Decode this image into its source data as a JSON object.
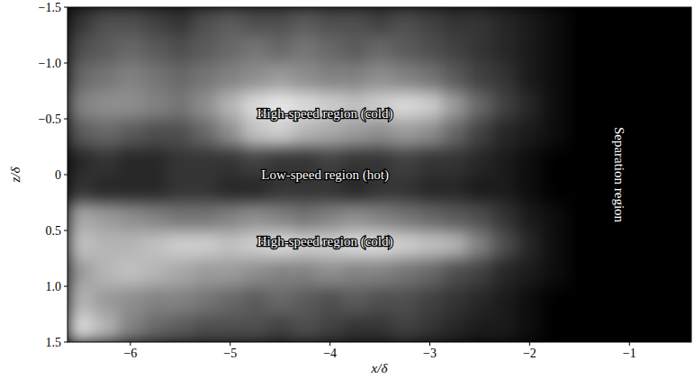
{
  "chart_data": {
    "type": "heatmap",
    "x_label": "x/δ",
    "y_label": "z/δ",
    "xlim": [
      -6.63,
      -0.38
    ],
    "ylim": [
      -1.5,
      1.5
    ],
    "xticks": [
      {
        "value": -6,
        "label": "−6"
      },
      {
        "value": -5,
        "label": "−5"
      },
      {
        "value": -4,
        "label": "−4"
      },
      {
        "value": -3,
        "label": "−3"
      },
      {
        "value": -2,
        "label": "−2"
      },
      {
        "value": -1,
        "label": "−1"
      }
    ],
    "yticks": [
      {
        "value": -1.5,
        "label": "−1.5"
      },
      {
        "value": -1.0,
        "label": "−1.0"
      },
      {
        "value": -0.5,
        "label": "−0.5"
      },
      0,
      0.5,
      {
        "value": 1.0,
        "label": "1.0"
      },
      1.5
    ],
    "color": "#ffffff",
    "cells": [
      [
        0.2,
        0.3,
        0.3,
        0.25,
        0.2,
        0.3,
        0.35,
        0.3,
        0.3,
        0.35,
        0.3,
        0.3,
        0.25,
        0.3,
        0.25,
        0.2,
        0.2,
        0.15,
        0.1,
        0.05,
        0,
        0,
        0,
        0,
        0
      ],
      [
        0.3,
        0.35,
        0.4,
        0.35,
        0.3,
        0.35,
        0.4,
        0.45,
        0.4,
        0.45,
        0.4,
        0.35,
        0.4,
        0.35,
        0.3,
        0.25,
        0.2,
        0.15,
        0.1,
        0.05,
        0,
        0,
        0,
        0,
        0
      ],
      [
        0.4,
        0.45,
        0.5,
        0.45,
        0.4,
        0.45,
        0.5,
        0.55,
        0.6,
        0.55,
        0.5,
        0.5,
        0.55,
        0.5,
        0.45,
        0.35,
        0.25,
        0.2,
        0.1,
        0.05,
        0,
        0,
        0,
        0,
        0
      ],
      [
        0.5,
        0.55,
        0.55,
        0.5,
        0.45,
        0.55,
        0.7,
        0.85,
        0.9,
        0.85,
        0.8,
        0.75,
        0.8,
        0.85,
        0.8,
        0.6,
        0.4,
        0.25,
        0.15,
        0.05,
        0,
        0,
        0,
        0,
        0
      ],
      [
        0.35,
        0.4,
        0.35,
        0.3,
        0.3,
        0.4,
        0.55,
        0.75,
        0.8,
        0.7,
        0.65,
        0.6,
        0.55,
        0.6,
        0.55,
        0.4,
        0.25,
        0.15,
        0.1,
        0.05,
        0,
        0,
        0,
        0,
        0
      ],
      [
        0.15,
        0.2,
        0.15,
        0.15,
        0.2,
        0.2,
        0.2,
        0.25,
        0.2,
        0.2,
        0.25,
        0.2,
        0.2,
        0.25,
        0.2,
        0.2,
        0.15,
        0.1,
        0.05,
        0,
        0,
        0,
        0,
        0,
        0
      ],
      [
        0.2,
        0.15,
        0.15,
        0.15,
        0.2,
        0.2,
        0.15,
        0.15,
        0.2,
        0.2,
        0.2,
        0.15,
        0.2,
        0.2,
        0.15,
        0.15,
        0.1,
        0.1,
        0.05,
        0,
        0,
        0,
        0,
        0,
        0
      ],
      [
        0.65,
        0.6,
        0.55,
        0.5,
        0.45,
        0.45,
        0.5,
        0.55,
        0.5,
        0.45,
        0.5,
        0.55,
        0.5,
        0.45,
        0.4,
        0.35,
        0.3,
        0.2,
        0.1,
        0.05,
        0,
        0,
        0,
        0,
        0
      ],
      [
        0.75,
        0.7,
        0.7,
        0.75,
        0.8,
        0.8,
        0.75,
        0.8,
        0.85,
        0.8,
        0.8,
        0.85,
        0.85,
        0.8,
        0.75,
        0.7,
        0.5,
        0.3,
        0.15,
        0.05,
        0,
        0,
        0,
        0,
        0
      ],
      [
        0.6,
        0.7,
        0.75,
        0.7,
        0.65,
        0.6,
        0.6,
        0.55,
        0.5,
        0.5,
        0.55,
        0.5,
        0.5,
        0.45,
        0.4,
        0.3,
        0.25,
        0.15,
        0.1,
        0.05,
        0,
        0,
        0,
        0,
        0
      ],
      [
        0.7,
        0.6,
        0.55,
        0.5,
        0.5,
        0.45,
        0.4,
        0.35,
        0.4,
        0.35,
        0.3,
        0.35,
        0.3,
        0.3,
        0.25,
        0.2,
        0.15,
        0.1,
        0.05,
        0,
        0,
        0,
        0,
        0,
        0
      ],
      [
        0.85,
        0.7,
        0.5,
        0.4,
        0.35,
        0.3,
        0.3,
        0.3,
        0.25,
        0.3,
        0.25,
        0.2,
        0.2,
        0.25,
        0.2,
        0.15,
        0.1,
        0.1,
        0.05,
        0,
        0,
        0,
        0,
        0,
        0
      ]
    ],
    "annotations": [
      {
        "text": "High-speed region (cold)",
        "x": -4.05,
        "y": -0.55
      },
      {
        "text": "Low-speed region (hot)",
        "x": -4.05,
        "y": 0.0
      },
      {
        "text": "High-speed region (cold)",
        "x": -4.05,
        "y": 0.6
      },
      {
        "text": "Separation region",
        "x": -1.1,
        "y": 0.0
      }
    ]
  }
}
